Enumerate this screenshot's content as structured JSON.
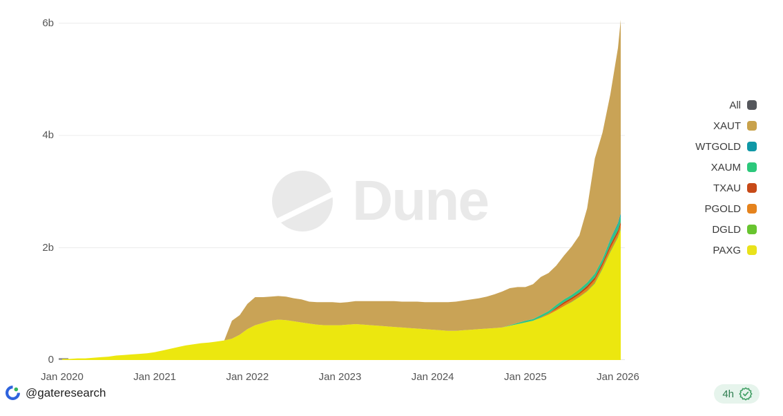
{
  "watermark": {
    "text": "Dune"
  },
  "y_axis": {
    "ticks": [
      {
        "label": "6b",
        "value": 6
      },
      {
        "label": "4b",
        "value": 4
      },
      {
        "label": "2b",
        "value": 2
      },
      {
        "label": "0",
        "value": 0
      }
    ]
  },
  "x_axis": {
    "ticks": [
      {
        "label": "Jan 2020",
        "year": 2020
      },
      {
        "label": "Jan 2021",
        "year": 2021
      },
      {
        "label": "Jan 2022",
        "year": 2022
      },
      {
        "label": "Jan 2023",
        "year": 2023
      },
      {
        "label": "Jan 2024",
        "year": 2024
      },
      {
        "label": "Jan 2025",
        "year": 2025
      },
      {
        "label": "Jan 2026",
        "year": 2026
      }
    ]
  },
  "legend": [
    {
      "label": "All",
      "color": "#55575c"
    },
    {
      "label": "XAUT",
      "color": "#c9a24b"
    },
    {
      "label": "WTGOLD",
      "color": "#0f98a6"
    },
    {
      "label": "XAUM",
      "color": "#2cc87b"
    },
    {
      "label": "TXAU",
      "color": "#c74a18"
    },
    {
      "label": "PGOLD",
      "color": "#e5831d"
    },
    {
      "label": "DGLD",
      "color": "#68c42f"
    },
    {
      "label": "PAXG",
      "color": "#e9e21b"
    }
  ],
  "footer": {
    "handle": "@gateresearch",
    "badge": {
      "time": "4h"
    }
  },
  "chart_data": {
    "type": "area",
    "stacked": true,
    "title": "",
    "xlabel": "",
    "ylabel": "",
    "y_unit": "b",
    "ylim": [
      0,
      6.2
    ],
    "xlim": [
      2020.0,
      2026.07
    ],
    "grid": "horizontal",
    "legend_position": "right",
    "x_interval": "monthly",
    "x": [
      2020.0,
      2020.083,
      2020.167,
      2020.25,
      2020.333,
      2020.417,
      2020.5,
      2020.583,
      2020.667,
      2020.75,
      2020.833,
      2020.917,
      2021.0,
      2021.083,
      2021.167,
      2021.25,
      2021.333,
      2021.417,
      2021.5,
      2021.583,
      2021.667,
      2021.75,
      2021.833,
      2021.917,
      2022.0,
      2022.083,
      2022.167,
      2022.25,
      2022.333,
      2022.417,
      2022.5,
      2022.583,
      2022.667,
      2022.75,
      2022.833,
      2022.917,
      2023.0,
      2023.083,
      2023.167,
      2023.25,
      2023.333,
      2023.417,
      2023.5,
      2023.583,
      2023.667,
      2023.75,
      2023.833,
      2023.917,
      2024.0,
      2024.083,
      2024.167,
      2024.25,
      2024.333,
      2024.417,
      2024.5,
      2024.583,
      2024.667,
      2024.75,
      2024.833,
      2024.917,
      2025.0,
      2025.083,
      2025.167,
      2025.25,
      2025.333,
      2025.417,
      2025.5,
      2025.583,
      2025.667,
      2025.75,
      2025.833,
      2025.917,
      2026.0,
      2026.03
    ],
    "value_unit": "billions USD",
    "stack_order_bottom_to_top": [
      "PAXG",
      "DGLD",
      "PGOLD",
      "TXAU",
      "XAUM",
      "WTGOLD",
      "XAUT"
    ],
    "series": [
      {
        "name": "PAXG",
        "color": "#ece70f",
        "values": [
          0.02,
          0.02,
          0.03,
          0.03,
          0.04,
          0.05,
          0.06,
          0.08,
          0.09,
          0.1,
          0.11,
          0.12,
          0.14,
          0.17,
          0.2,
          0.23,
          0.26,
          0.28,
          0.3,
          0.31,
          0.33,
          0.35,
          0.38,
          0.45,
          0.55,
          0.62,
          0.66,
          0.7,
          0.72,
          0.71,
          0.69,
          0.67,
          0.65,
          0.63,
          0.62,
          0.62,
          0.62,
          0.63,
          0.64,
          0.63,
          0.62,
          0.61,
          0.6,
          0.59,
          0.58,
          0.57,
          0.56,
          0.55,
          0.54,
          0.53,
          0.52,
          0.52,
          0.53,
          0.54,
          0.55,
          0.56,
          0.57,
          0.58,
          0.61,
          0.64,
          0.67,
          0.7,
          0.75,
          0.81,
          0.88,
          0.96,
          1.03,
          1.12,
          1.22,
          1.36,
          1.62,
          1.92,
          2.18,
          2.32
        ]
      },
      {
        "name": "DGLD",
        "color": "#72c636",
        "values": [
          0,
          0,
          0,
          0,
          0,
          0,
          0,
          0,
          0,
          0,
          0,
          0,
          0,
          0,
          0,
          0,
          0,
          0,
          0,
          0,
          0,
          0,
          0,
          0,
          0,
          0,
          0,
          0,
          0,
          0,
          0,
          0,
          0,
          0,
          0,
          0,
          0,
          0,
          0,
          0,
          0,
          0,
          0,
          0,
          0,
          0,
          0,
          0,
          0,
          0,
          0,
          0,
          0,
          0,
          0,
          0,
          0,
          0,
          0,
          0,
          0,
          0,
          0,
          0,
          0,
          0,
          0.01,
          0.01,
          0.01,
          0.02,
          0.02,
          0.02,
          0.02,
          0.02
        ]
      },
      {
        "name": "PGOLD",
        "color": "#e5831a",
        "values": [
          0,
          0,
          0,
          0,
          0,
          0,
          0,
          0,
          0,
          0,
          0,
          0,
          0,
          0,
          0,
          0,
          0,
          0,
          0,
          0,
          0,
          0,
          0,
          0,
          0,
          0,
          0,
          0,
          0,
          0,
          0,
          0,
          0,
          0,
          0,
          0,
          0,
          0,
          0,
          0,
          0,
          0,
          0,
          0,
          0,
          0,
          0,
          0,
          0,
          0,
          0,
          0,
          0,
          0,
          0,
          0,
          0,
          0,
          0,
          0,
          0,
          0,
          0.01,
          0.02,
          0.03,
          0.04,
          0.04,
          0.04,
          0.05,
          0.05,
          0.05,
          0.06,
          0.06,
          0.07
        ]
      },
      {
        "name": "TXAU",
        "color": "#c2440e",
        "values": [
          0,
          0,
          0,
          0,
          0,
          0,
          0,
          0,
          0,
          0,
          0,
          0,
          0,
          0,
          0,
          0,
          0,
          0,
          0,
          0,
          0,
          0,
          0,
          0,
          0,
          0,
          0,
          0,
          0,
          0,
          0,
          0,
          0,
          0,
          0,
          0,
          0,
          0,
          0,
          0,
          0,
          0,
          0,
          0,
          0,
          0,
          0,
          0,
          0,
          0,
          0,
          0,
          0,
          0,
          0,
          0,
          0,
          0,
          0,
          0,
          0,
          0,
          0,
          0,
          0.02,
          0.03,
          0.03,
          0.03,
          0.04,
          0.04,
          0.04,
          0.05,
          0.05,
          0.05
        ]
      },
      {
        "name": "XAUM",
        "color": "#2ec487",
        "values": [
          0,
          0,
          0,
          0,
          0,
          0,
          0,
          0,
          0,
          0,
          0,
          0,
          0,
          0,
          0,
          0,
          0,
          0,
          0,
          0,
          0,
          0,
          0,
          0,
          0,
          0,
          0,
          0,
          0,
          0,
          0,
          0,
          0,
          0,
          0,
          0,
          0,
          0,
          0,
          0,
          0,
          0,
          0,
          0,
          0,
          0,
          0,
          0,
          0,
          0,
          0,
          0,
          0,
          0,
          0,
          0,
          0,
          0,
          0.01,
          0.02,
          0.03,
          0.03,
          0.04,
          0.04,
          0.05,
          0.05,
          0.05,
          0.06,
          0.06,
          0.07,
          0.07,
          0.08,
          0.09,
          0.1
        ]
      },
      {
        "name": "WTGOLD",
        "color": "#11a3ad",
        "values": [
          0,
          0,
          0,
          0,
          0,
          0,
          0,
          0,
          0,
          0,
          0,
          0,
          0,
          0,
          0,
          0,
          0,
          0,
          0,
          0,
          0,
          0,
          0,
          0,
          0,
          0,
          0,
          0,
          0,
          0,
          0,
          0,
          0,
          0,
          0,
          0,
          0,
          0,
          0,
          0,
          0,
          0,
          0,
          0,
          0,
          0,
          0,
          0,
          0,
          0,
          0,
          0,
          0,
          0,
          0,
          0,
          0,
          0,
          0,
          0,
          0,
          0,
          0,
          0,
          0,
          0,
          0,
          0,
          0,
          0,
          0,
          0.02,
          0.04,
          0.05
        ]
      },
      {
        "name": "XAUT",
        "color": "#c9a356",
        "values": [
          0,
          0,
          0,
          0,
          0,
          0,
          0,
          0,
          0,
          0,
          0,
          0,
          0,
          0,
          0,
          0,
          0,
          0,
          0,
          0,
          0,
          0,
          0.32,
          0.35,
          0.45,
          0.5,
          0.46,
          0.43,
          0.42,
          0.42,
          0.41,
          0.41,
          0.39,
          0.4,
          0.41,
          0.41,
          0.4,
          0.4,
          0.41,
          0.42,
          0.43,
          0.44,
          0.45,
          0.46,
          0.46,
          0.47,
          0.48,
          0.48,
          0.49,
          0.5,
          0.51,
          0.52,
          0.53,
          0.54,
          0.55,
          0.57,
          0.6,
          0.64,
          0.66,
          0.64,
          0.6,
          0.62,
          0.68,
          0.68,
          0.7,
          0.78,
          0.86,
          0.96,
          1.32,
          2.05,
          2.25,
          2.58,
          3.12,
          3.45
        ]
      }
    ]
  }
}
